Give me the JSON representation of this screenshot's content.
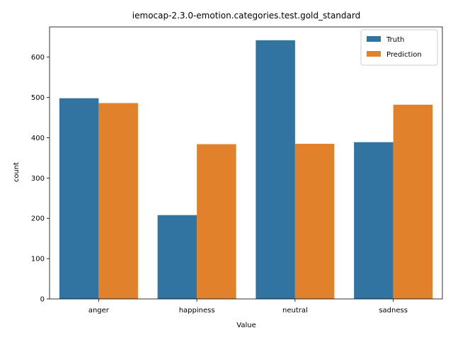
{
  "chart_data": {
    "type": "bar",
    "title": "iemocap-2.3.0-emotion.categories.test.gold_standard",
    "xlabel": "Value",
    "ylabel": "count",
    "categories": [
      "anger",
      "happiness",
      "neutral",
      "sadness"
    ],
    "series": [
      {
        "name": "Truth",
        "color": "#3274a1",
        "values": [
          498,
          208,
          642,
          389
        ]
      },
      {
        "name": "Prediction",
        "color": "#e1812c",
        "values": [
          486,
          384,
          385,
          482
        ]
      }
    ],
    "ylim": [
      0,
      675
    ],
    "yticks": [
      0,
      100,
      200,
      300,
      400,
      500,
      600
    ],
    "grid": false,
    "legend_position": "top-right"
  }
}
